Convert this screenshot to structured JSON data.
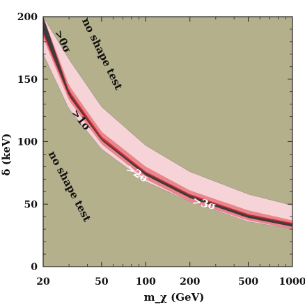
{
  "chart_data": {
    "type": "area",
    "title": "",
    "xlabel": "m_χ (GeV)",
    "ylabel": "δ (keV)",
    "x_scale": "log",
    "xlim": [
      20,
      1000
    ],
    "ylim": [
      0,
      200
    ],
    "x_ticks": [
      20,
      50,
      100,
      200,
      500,
      1000
    ],
    "y_ticks": [
      0,
      50,
      100,
      150,
      200
    ],
    "grid": false,
    "colors": {
      "background": "#b4b08c",
      "band_0sigma": "#f6d3d6",
      "band_1sigma": "#e8868c",
      "band_2sigma": "#cf2a34",
      "band_3sigma": "#3d3c3c"
    },
    "bands": [
      {
        "name": ">0σ",
        "x": [
          20,
          30,
          50,
          100,
          200,
          500,
          1000
        ],
        "upper": [
          200,
          166,
          128,
          97,
          76,
          58,
          49
        ],
        "lower": [
          170,
          126,
          94,
          68,
          52,
          36,
          30
        ]
      },
      {
        "name": ">1σ",
        "x": [
          20,
          30,
          50,
          100,
          200,
          500,
          1000
        ],
        "upper": [
          200,
          145,
          108,
          80,
          61,
          45,
          37
        ],
        "lower": [
          183,
          133,
          98,
          70,
          52,
          37,
          30
        ]
      },
      {
        "name": ">2σ",
        "x": [
          20,
          30,
          50,
          100,
          200,
          500,
          1000
        ],
        "upper": [
          200,
          141,
          104,
          76,
          58,
          42,
          35
        ],
        "lower": [
          186,
          136,
          101,
          73,
          55,
          39,
          32
        ]
      },
      {
        "name": ">3σ",
        "x": [
          20,
          30,
          50,
          100,
          200,
          500,
          1000
        ],
        "upper": [
          200,
          139,
          102,
          75,
          57,
          41,
          34
        ],
        "lower": [
          188,
          137,
          101,
          73,
          55,
          39,
          32
        ]
      }
    ],
    "annotations": [
      {
        "text": "no shape test",
        "x": 50,
        "y": 170,
        "angle": 64
      },
      {
        "text": "no shape test",
        "x": 30,
        "y": 64,
        "angle": 62
      },
      {
        "text": ">0σ",
        "x": 27,
        "y": 180,
        "angle": 64
      },
      {
        "text": ">1σ",
        "x": 36,
        "y": 117,
        "angle": 51
      },
      {
        "text": ">2σ",
        "x": 87,
        "y": 74,
        "angle": 32
      },
      {
        "text": ">3σ",
        "x": 250,
        "y": 50,
        "angle": 15
      }
    ]
  }
}
